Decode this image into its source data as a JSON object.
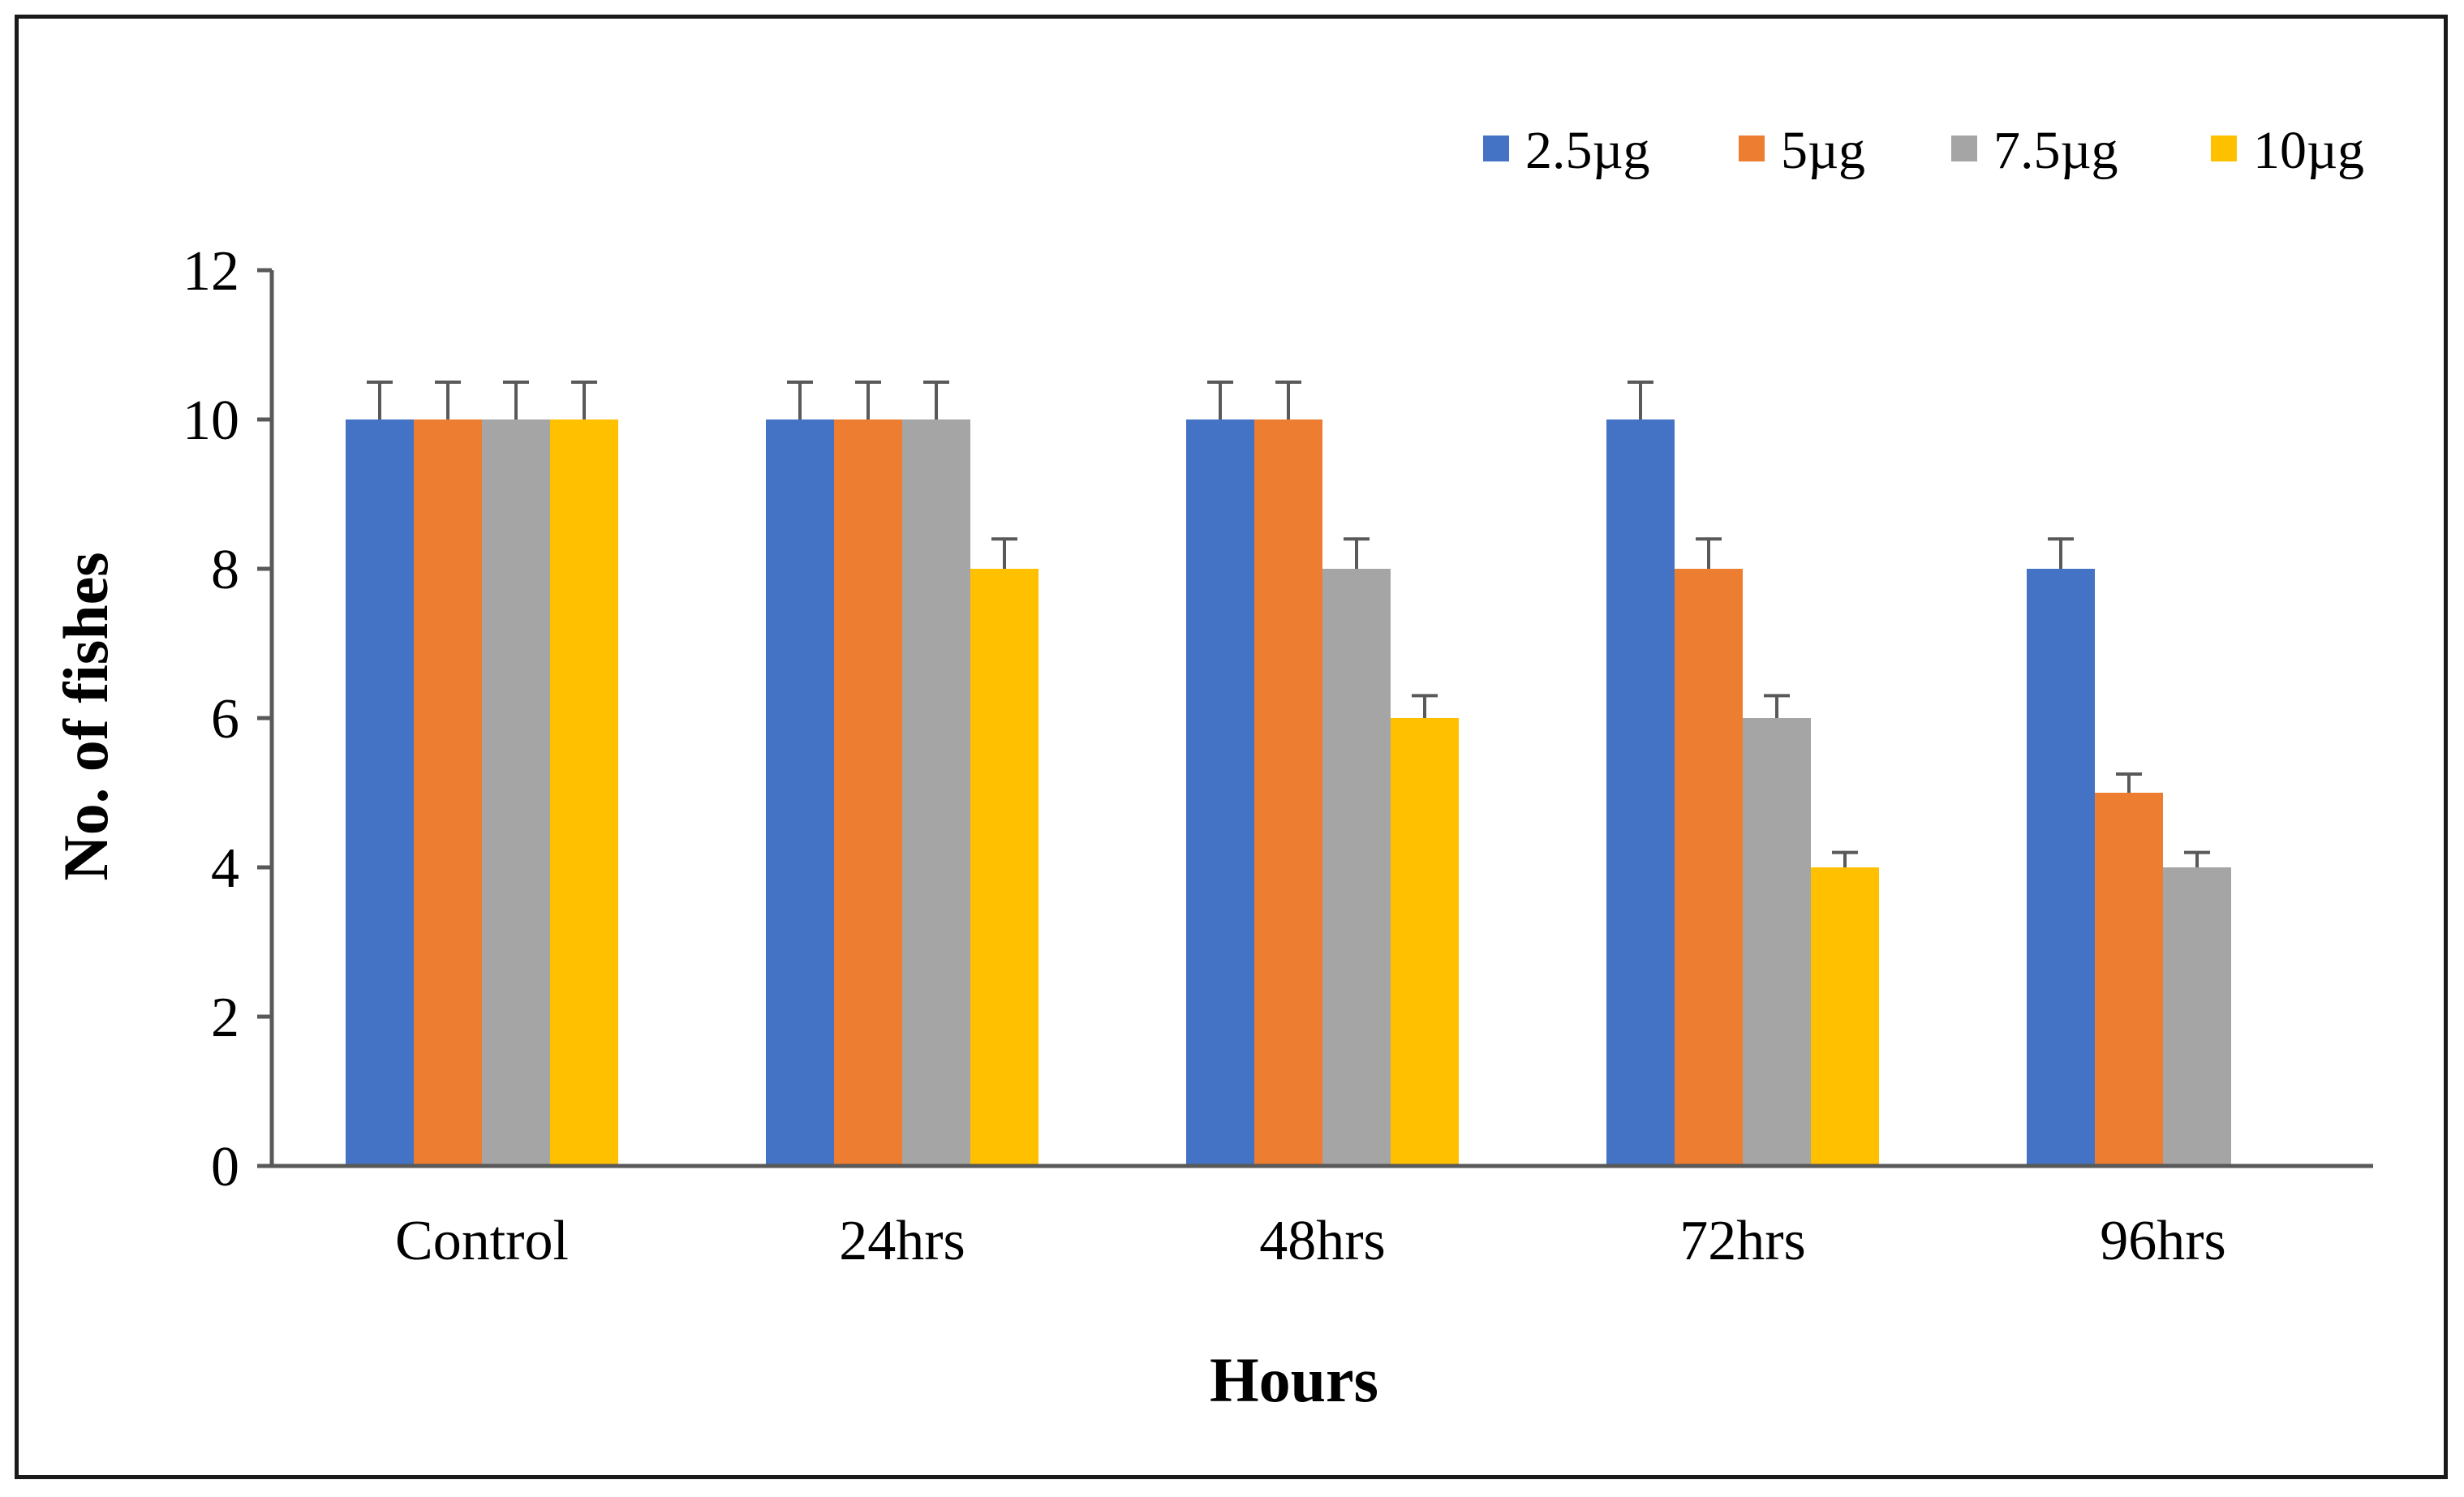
{
  "chart_data": {
    "type": "bar",
    "categories": [
      "Control",
      "24hrs",
      "48hrs",
      "72hrs",
      "96hrs"
    ],
    "series": [
      {
        "name": "2.5µg",
        "color": "#4472C4",
        "values": [
          10,
          10,
          10,
          10,
          8
        ],
        "error": [
          0.5,
          0.5,
          0.5,
          0.5,
          0.4
        ]
      },
      {
        "name": "5µg",
        "color": "#ED7D31",
        "values": [
          10,
          10,
          10,
          8,
          5
        ],
        "error": [
          0.5,
          0.5,
          0.5,
          0.4,
          0.25
        ]
      },
      {
        "name": "7.5µg",
        "color": "#A5A5A5",
        "values": [
          10,
          10,
          8,
          6,
          4
        ],
        "error": [
          0.5,
          0.5,
          0.4,
          0.3,
          0.2
        ]
      },
      {
        "name": "10µg",
        "color": "#FFC000",
        "values": [
          10,
          8,
          6,
          4,
          0
        ],
        "error": [
          0.5,
          0.4,
          0.3,
          0.2,
          0
        ]
      }
    ],
    "xlabel": "Hours",
    "ylabel": "No. of fishes",
    "ylim": [
      0,
      12
    ],
    "yticks": [
      0,
      2,
      4,
      6,
      8,
      10,
      12
    ],
    "grid": false,
    "legend_position": "top-right",
    "error_bars": true
  }
}
